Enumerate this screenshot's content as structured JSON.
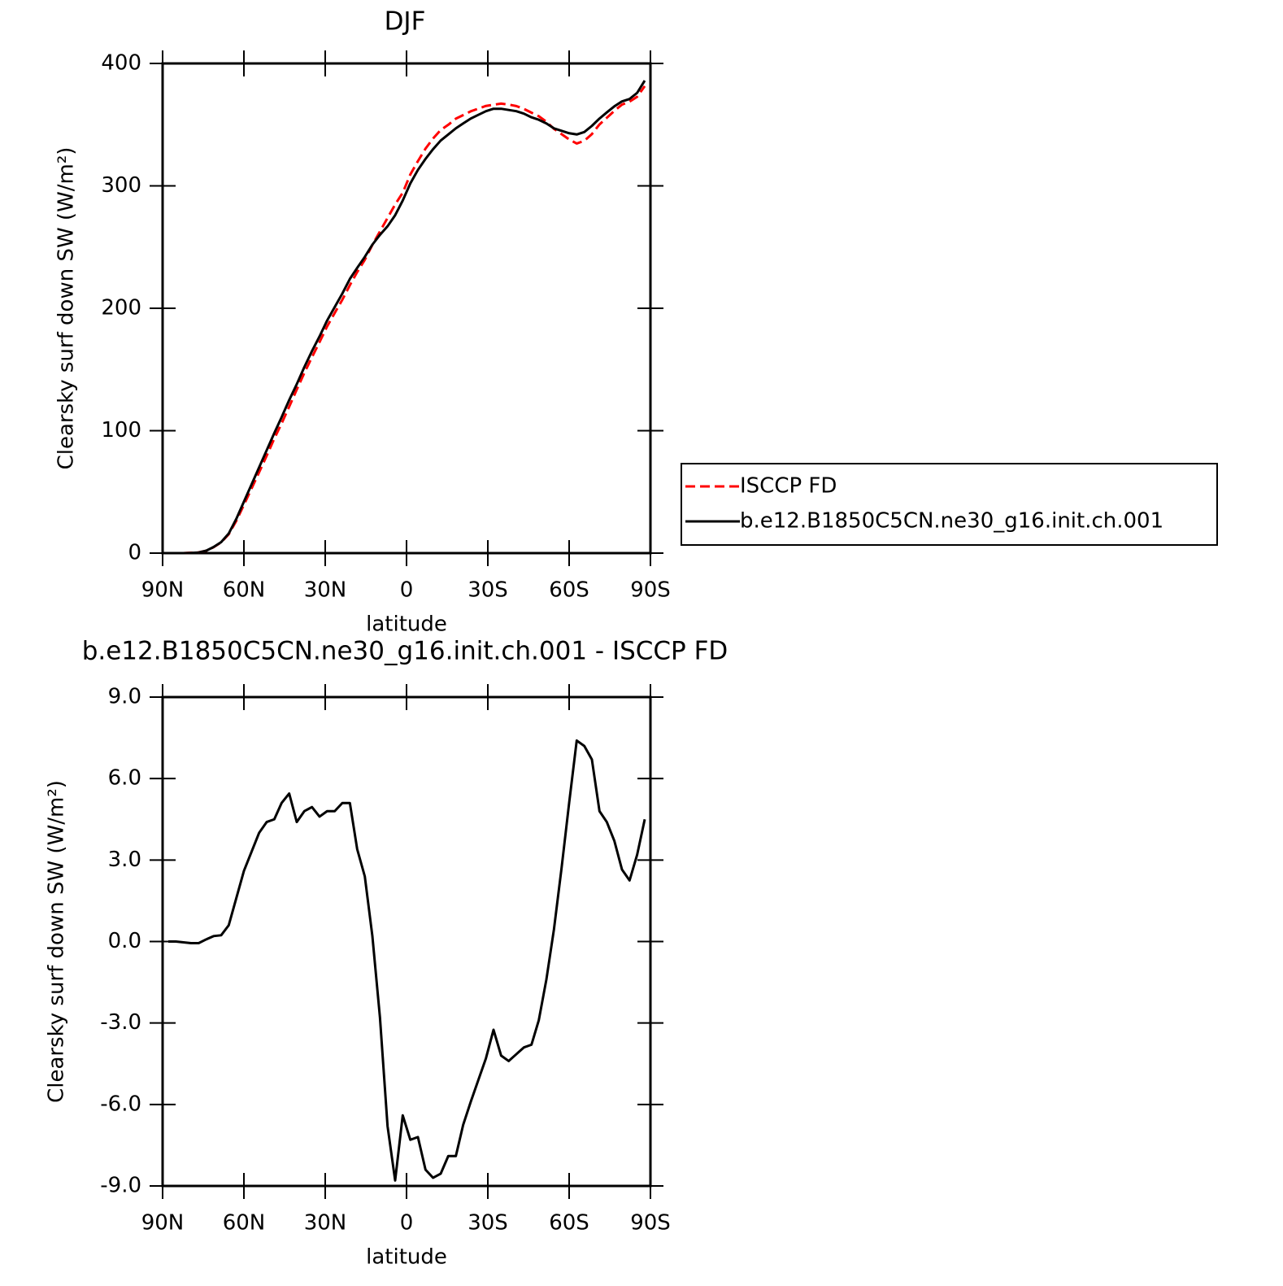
{
  "chart_data": [
    {
      "type": "line",
      "title": "DJF",
      "xlabel": "latitude",
      "ylabel": "Clearsky surf down SW (W/m²)",
      "x": [
        87.9,
        85.1,
        82.3,
        79.5,
        76.7,
        73.9,
        71.2,
        68.4,
        65.6,
        62.8,
        60.0,
        57.2,
        54.4,
        51.6,
        48.8,
        46.1,
        43.3,
        40.5,
        37.7,
        34.9,
        32.1,
        29.3,
        26.5,
        23.7,
        20.9,
        18.2,
        15.4,
        12.6,
        9.8,
        7.0,
        4.2,
        1.4,
        -1.4,
        -4.2,
        -7.0,
        -9.8,
        -12.6,
        -15.4,
        -18.2,
        -20.9,
        -23.7,
        -26.5,
        -29.3,
        -32.1,
        -34.9,
        -37.7,
        -40.5,
        -43.3,
        -46.1,
        -48.8,
        -51.6,
        -54.4,
        -57.2,
        -60.0,
        -62.8,
        -65.6,
        -68.4,
        -71.2,
        -73.9,
        -76.7,
        -79.5,
        -82.3,
        -85.1,
        -87.9
      ],
      "series": [
        {
          "name": "ISCCP FD",
          "color": "#ff0000",
          "line_style": "dashed",
          "values": [
            0,
            0,
            0,
            0.3,
            0.6,
            1.9,
            4.8,
            8.8,
            15.4,
            26.4,
            39.4,
            52.7,
            66,
            79.6,
            93.5,
            105.9,
            119.6,
            133.6,
            147.2,
            160,
            172.4,
            185.2,
            196.2,
            206.9,
            218.9,
            229.6,
            239.6,
            251.8,
            262.8,
            273.8,
            284.8,
            294.4,
            309.3,
            320.2,
            330.4,
            338.7,
            345.6,
            349.9,
            354.9,
            357.8,
            360.9,
            363.1,
            365.3,
            366.3,
            367.2,
            366.4,
            365.2,
            362.9,
            359.8,
            356.9,
            352.4,
            346.6,
            342.3,
            337.9,
            334.6,
            336.8,
            342.3,
            350.2,
            355.6,
            361.3,
            366.4,
            368.8,
            372.8,
            381.5
          ]
        },
        {
          "name": "b.e12.B1850C5CN.ne30_g16.init.ch.001",
          "color": "#000000",
          "line_style": "solid",
          "values": [
            0,
            0,
            0,
            0.2,
            0.5,
            2,
            5,
            9,
            16,
            28,
            42,
            56,
            70,
            84,
            98,
            111,
            125,
            138,
            152,
            165,
            177,
            190,
            201,
            212,
            224,
            233,
            242,
            252,
            260,
            267,
            276,
            288,
            302,
            313,
            322,
            330,
            337,
            342,
            347,
            351,
            355,
            358,
            361,
            363,
            363,
            362,
            361,
            359,
            356,
            354,
            351,
            347,
            345,
            343,
            342,
            344,
            349,
            355,
            360,
            365,
            369,
            371,
            376,
            386
          ]
        }
      ],
      "xlim": [
        90,
        -90
      ],
      "xticks": [
        {
          "value": 90,
          "label": "90N"
        },
        {
          "value": 60,
          "label": "60N"
        },
        {
          "value": 30,
          "label": "30N"
        },
        0,
        {
          "value": -30,
          "label": "30S"
        },
        {
          "value": -60,
          "label": "60S"
        },
        {
          "value": -90,
          "label": "90S"
        }
      ],
      "ylim": [
        0,
        400
      ],
      "yticks": [
        0,
        100,
        200,
        300,
        400
      ],
      "legend": "right"
    },
    {
      "type": "line",
      "title": "b.e12.B1850C5CN.ne30_g16.init.ch.001 - ISCCP FD",
      "xlabel": "latitude",
      "ylabel": "Clearsky surf down SW (W/m²)",
      "x": [
        87.9,
        85.1,
        82.3,
        79.5,
        76.7,
        73.9,
        71.2,
        68.4,
        65.6,
        62.8,
        60.0,
        57.2,
        54.4,
        51.6,
        48.8,
        46.1,
        43.3,
        40.5,
        37.7,
        34.9,
        32.1,
        29.3,
        26.5,
        23.7,
        20.9,
        18.2,
        15.4,
        12.6,
        9.8,
        7.0,
        4.2,
        1.4,
        -1.4,
        -4.2,
        -7.0,
        -9.8,
        -12.6,
        -15.4,
        -18.2,
        -20.9,
        -23.7,
        -26.5,
        -29.3,
        -32.1,
        -34.9,
        -37.7,
        -40.5,
        -43.3,
        -46.1,
        -48.8,
        -51.6,
        -54.4,
        -57.2,
        -60.0,
        -62.8,
        -65.6,
        -68.4,
        -71.2,
        -73.9,
        -76.7,
        -79.5,
        -82.3,
        -85.1,
        -87.9
      ],
      "color": "#000000",
      "values": [
        0,
        0,
        -0.03,
        -0.06,
        -0.06,
        0.08,
        0.2,
        0.23,
        0.6,
        1.6,
        2.6,
        3.3,
        4.0,
        4.4,
        4.5,
        5.1,
        5.45,
        4.4,
        4.8,
        4.95,
        4.6,
        4.8,
        4.8,
        5.1,
        5.1,
        3.4,
        2.4,
        0.2,
        -2.8,
        -6.8,
        -8.8,
        -6.4,
        -7.3,
        -7.2,
        -8.4,
        -8.7,
        -8.55,
        -7.9,
        -7.9,
        -6.75,
        -5.9,
        -5.1,
        -4.3,
        -3.25,
        -4.2,
        -4.4,
        -4.15,
        -3.9,
        -3.8,
        -2.9,
        -1.4,
        0.45,
        2.7,
        5.1,
        7.4,
        7.2,
        6.7,
        4.8,
        4.4,
        3.7,
        2.65,
        2.25,
        3.2,
        4.5
      ],
      "xlim": [
        90,
        -90
      ],
      "xticks": [
        {
          "value": 90,
          "label": "90N"
        },
        {
          "value": 60,
          "label": "60N"
        },
        {
          "value": 30,
          "label": "30N"
        },
        0,
        {
          "value": -30,
          "label": "30S"
        },
        {
          "value": -60,
          "label": "60S"
        },
        {
          "value": -90,
          "label": "90S"
        }
      ],
      "ylim": [
        -9,
        9
      ],
      "yticks": [
        {
          "value": -9,
          "label": "-9.0"
        },
        {
          "value": -6,
          "label": "-6.0"
        },
        {
          "value": -3,
          "label": "-3.0"
        },
        {
          "value": 0,
          "label": "0.0"
        },
        {
          "value": 3,
          "label": "3.0"
        },
        {
          "value": 6,
          "label": "6.0"
        },
        {
          "value": 9,
          "label": "9.0"
        }
      ]
    }
  ]
}
